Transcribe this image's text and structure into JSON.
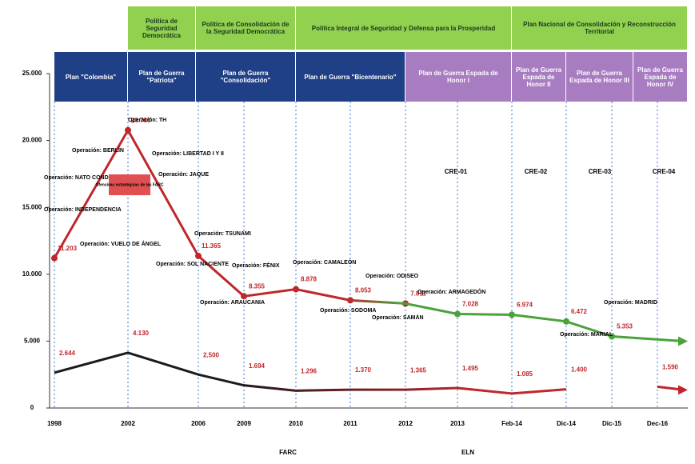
{
  "chart_data": {
    "type": "line",
    "policies": [
      "Política de Seguridad Democrática",
      "Política de Consolidación de la Seguridad Democrática",
      "Política Integral de Seguridad y Defensa para la Prosperidad",
      "Plan Nacional de Consolidación y Reconstrucción Territorial"
    ],
    "plans": [
      "Plan \"Colombia\"",
      "Plan de Guerra \"Patriota\"",
      "Plan de Guerra \"Consolidación\"",
      "Plan de Guerra \"Bicentenario\"",
      "Plan de Guerra Espada de Honor I",
      "Plan de Guerra Espada de Honor II",
      "Plan de Guerra Espada de Honor III",
      "Plan de Guerra Espada de Honor IV"
    ],
    "phases": [
      "CRE-01",
      "CRE-02",
      "CRE-03",
      "CRE-04"
    ],
    "categories": [
      "1998",
      "2002",
      "2006",
      "2009",
      "2010",
      "2011",
      "2012",
      "2013",
      "Feb-14",
      "Dic-14",
      "Dic-15",
      "Dec-16"
    ],
    "series": [
      {
        "name": "FARC",
        "color": "#c0262b",
        "color2": "#4aa23a",
        "values": [
          11203,
          20766,
          11365,
          8355,
          8878,
          8053,
          7811,
          7028,
          6974,
          6472,
          5353,
          null
        ],
        "value_labels": [
          "11.203",
          "20.766",
          "11.365",
          "8.355",
          "8.878",
          "8.053",
          "7.811",
          "7.028",
          "6.974",
          "6.472",
          "5.353",
          null
        ]
      },
      {
        "name": "ELN",
        "color": "#1a1a1a",
        "color2": "#c0262b",
        "values": [
          2644,
          4130,
          2500,
          1694,
          1296,
          1370,
          1365,
          1495,
          1085,
          1400,
          null,
          1590
        ],
        "value_labels": [
          "2.644",
          "4.130",
          "2.500",
          "1.694",
          "1.296",
          "1.370",
          "1.365",
          "1.495",
          "1.085",
          "1.400",
          null,
          "1.590"
        ]
      }
    ],
    "annotations": [
      "Operación: INDEPENDENCIA",
      "Operación: NATO CONDOR",
      "Operación: BERLÍN",
      "Operación: TH",
      "Operación: LIBERTAD I Y II",
      "Operación: JAQUE",
      "Operación: VUELO DE ÁNGEL",
      "Operación: SOL NACIENTE",
      "Operación: TSUNAMI",
      "Operación: FÉNIX",
      "Operación: ARAUCANIA",
      "Operación: CAMALEÓN",
      "Operación: SODOMA",
      "Operación: ODISEO",
      "Operación: SAMÁN",
      "Operación: ARMAGEDÓN",
      "Operación: MARIAL",
      "Operación: MADRID",
      "Ofensivas estratégicas de las FARC"
    ],
    "ylim": [
      0,
      25000
    ],
    "yticks": [
      0,
      {
        "value": 5000,
        "label": "5.000"
      },
      {
        "value": 10000,
        "label": "10.000"
      },
      {
        "value": 15000,
        "label": "15.000"
      },
      {
        "value": 20000,
        "label": "20.000"
      },
      {
        "value": 25000,
        "label": "25.000"
      }
    ]
  }
}
